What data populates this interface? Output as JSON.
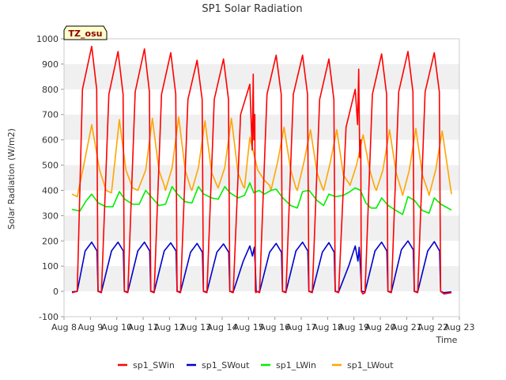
{
  "chart_data": {
    "type": "line",
    "title": "SP1 Solar Radiation",
    "xlabel": "Time",
    "ylabel": "Solar Radiation (W/m2)",
    "badge": "TZ_osu",
    "ylim": [
      -100,
      1000
    ],
    "yticks": [
      -100,
      0,
      100,
      200,
      300,
      400,
      500,
      600,
      700,
      800,
      900,
      1000
    ],
    "xlim": [
      8,
      23
    ],
    "xticks": [
      8,
      9,
      10,
      11,
      12,
      13,
      14,
      15,
      16,
      17,
      18,
      19,
      20,
      21,
      22,
      23
    ],
    "xtick_labels": [
      "Aug 8",
      "Aug 9",
      "Aug 10",
      "Aug 11",
      "Aug 12",
      "Aug 13",
      "Aug 14",
      "Aug 15",
      "Aug 16",
      "Aug 17",
      "Aug 18",
      "Aug 19",
      "Aug 20",
      "Aug 21",
      "Aug 22",
      "Aug 23"
    ],
    "grid": "horizontal bands",
    "legend_position": "bottom",
    "x_unit": "day of August",
    "series": [
      {
        "name": "sp1_SWin",
        "color": "#ff0000",
        "x": [
          8.3,
          8.5,
          8.7,
          9.05,
          9.24,
          9.29,
          9.42,
          9.7,
          10.05,
          10.24,
          10.29,
          10.42,
          10.7,
          11.05,
          11.24,
          11.29,
          11.42,
          11.7,
          12.05,
          12.24,
          12.29,
          12.42,
          12.7,
          13.05,
          13.24,
          13.29,
          13.42,
          13.7,
          14.05,
          14.24,
          14.29,
          14.42,
          14.7,
          15.05,
          15.14,
          15.18,
          15.2,
          15.24,
          15.26,
          15.28,
          15.31,
          15.42,
          15.7,
          16.05,
          16.24,
          16.29,
          16.42,
          16.7,
          17.05,
          17.24,
          17.29,
          17.42,
          17.7,
          18.05,
          18.24,
          18.29,
          18.42,
          18.7,
          19.05,
          19.14,
          19.18,
          19.22,
          19.26,
          19.28,
          19.31,
          19.34,
          19.42,
          19.7,
          20.05,
          20.24,
          20.29,
          20.42,
          20.7,
          21.05,
          21.24,
          21.29,
          21.42,
          21.7,
          22.05,
          22.24,
          22.29,
          22.42,
          22.7
        ],
        "y": [
          -5,
          0,
          800,
          970,
          800,
          0,
          -5,
          780,
          950,
          780,
          0,
          -5,
          790,
          960,
          790,
          0,
          -5,
          780,
          945,
          780,
          0,
          -5,
          760,
          915,
          760,
          0,
          -5,
          760,
          920,
          760,
          0,
          -5,
          700,
          820,
          560,
          860,
          600,
          700,
          0,
          -5,
          0,
          -5,
          780,
          935,
          780,
          0,
          -5,
          780,
          935,
          780,
          0,
          -5,
          760,
          920,
          760,
          0,
          -5,
          650,
          800,
          660,
          880,
          530,
          600,
          0,
          -5,
          -10,
          -5,
          780,
          940,
          780,
          0,
          -5,
          790,
          950,
          790,
          0,
          -5,
          790,
          945,
          790,
          0,
          -10,
          -5
        ]
      },
      {
        "name": "sp1_SWout",
        "color": "#0000cc",
        "x": [
          8.3,
          8.5,
          8.8,
          9.05,
          9.25,
          9.29,
          9.42,
          9.8,
          10.05,
          10.25,
          10.29,
          10.42,
          10.8,
          11.05,
          11.25,
          11.29,
          11.42,
          11.8,
          12.05,
          12.25,
          12.29,
          12.42,
          12.8,
          13.05,
          13.25,
          13.29,
          13.42,
          13.8,
          14.05,
          14.25,
          14.29,
          14.42,
          14.8,
          15.05,
          15.15,
          15.22,
          15.26,
          15.29,
          15.42,
          15.8,
          16.05,
          16.25,
          16.29,
          16.42,
          16.8,
          17.05,
          17.25,
          17.29,
          17.42,
          17.8,
          18.05,
          18.25,
          18.29,
          18.42,
          18.8,
          19.05,
          19.15,
          19.2,
          19.25,
          19.29,
          19.42,
          19.8,
          20.05,
          20.25,
          20.29,
          20.42,
          20.8,
          21.05,
          21.25,
          21.29,
          21.42,
          21.8,
          22.05,
          22.25,
          22.29,
          22.42,
          22.7
        ],
        "y": [
          -2,
          0,
          160,
          195,
          160,
          0,
          -2,
          160,
          195,
          160,
          0,
          -2,
          160,
          195,
          160,
          0,
          -2,
          160,
          192,
          160,
          0,
          -2,
          155,
          190,
          155,
          0,
          -2,
          155,
          188,
          155,
          0,
          -2,
          120,
          180,
          140,
          175,
          90,
          0,
          -2,
          155,
          190,
          155,
          0,
          -2,
          160,
          195,
          160,
          0,
          -2,
          155,
          193,
          155,
          0,
          -2,
          100,
          180,
          120,
          175,
          90,
          0,
          -2,
          160,
          195,
          160,
          0,
          -2,
          165,
          200,
          165,
          0,
          -2,
          160,
          197,
          160,
          0,
          -5,
          -2
        ]
      },
      {
        "name": "sp1_LWin",
        "color": "#00ee00",
        "x": [
          8.3,
          8.6,
          8.85,
          9.05,
          9.3,
          9.6,
          9.85,
          10.1,
          10.3,
          10.6,
          10.85,
          11.1,
          11.3,
          11.6,
          11.85,
          12.1,
          12.3,
          12.6,
          12.85,
          13.1,
          13.3,
          13.6,
          13.85,
          14.1,
          14.3,
          14.6,
          14.85,
          15.05,
          15.2,
          15.4,
          15.6,
          15.85,
          16.05,
          16.3,
          16.6,
          16.85,
          17.05,
          17.3,
          17.6,
          17.85,
          18.05,
          18.3,
          18.6,
          18.85,
          19.05,
          19.25,
          19.45,
          19.65,
          19.85,
          20.05,
          20.3,
          20.6,
          20.85,
          21.05,
          21.3,
          21.6,
          21.85,
          22.05,
          22.3,
          22.7
        ],
        "y": [
          325,
          318,
          360,
          385,
          350,
          335,
          335,
          395,
          365,
          345,
          345,
          400,
          375,
          340,
          345,
          415,
          385,
          355,
          350,
          415,
          385,
          370,
          365,
          415,
          390,
          370,
          380,
          430,
          390,
          400,
          385,
          400,
          405,
          370,
          340,
          330,
          395,
          400,
          360,
          340,
          385,
          375,
          380,
          395,
          410,
          400,
          350,
          330,
          330,
          370,
          340,
          320,
          305,
          375,
          360,
          320,
          310,
          370,
          345,
          322
        ]
      },
      {
        "name": "sp1_LWout",
        "color": "#ffa500",
        "x": [
          8.3,
          8.5,
          8.75,
          9.05,
          9.35,
          9.6,
          9.8,
          10.1,
          10.35,
          10.6,
          10.8,
          11.1,
          11.35,
          11.6,
          11.8,
          11.85,
          12.1,
          12.35,
          12.6,
          12.8,
          12.85,
          13.1,
          13.35,
          13.6,
          13.8,
          13.85,
          14.1,
          14.35,
          14.6,
          14.8,
          14.85,
          15.05,
          15.35,
          15.6,
          15.8,
          15.85,
          16.1,
          16.35,
          16.6,
          16.8,
          16.85,
          17.1,
          17.35,
          17.6,
          17.8,
          17.85,
          18.1,
          18.35,
          18.6,
          18.8,
          18.85,
          19.1,
          19.35,
          19.6,
          19.8,
          19.85,
          20.1,
          20.35,
          20.6,
          20.8,
          20.85,
          21.1,
          21.35,
          21.6,
          21.8,
          21.85,
          22.1,
          22.35,
          22.7
        ],
        "y": [
          385,
          375,
          500,
          660,
          480,
          400,
          390,
          680,
          480,
          410,
          400,
          480,
          685,
          480,
          420,
          400,
          490,
          690,
          480,
          410,
          400,
          490,
          675,
          470,
          420,
          410,
          490,
          685,
          470,
          415,
          410,
          610,
          480,
          440,
          420,
          400,
          510,
          650,
          480,
          410,
          400,
          510,
          640,
          470,
          410,
          400,
          510,
          640,
          460,
          430,
          420,
          500,
          620,
          480,
          410,
          400,
          480,
          640,
          470,
          400,
          380,
          480,
          645,
          460,
          400,
          380,
          480,
          635,
          385
        ]
      }
    ]
  }
}
